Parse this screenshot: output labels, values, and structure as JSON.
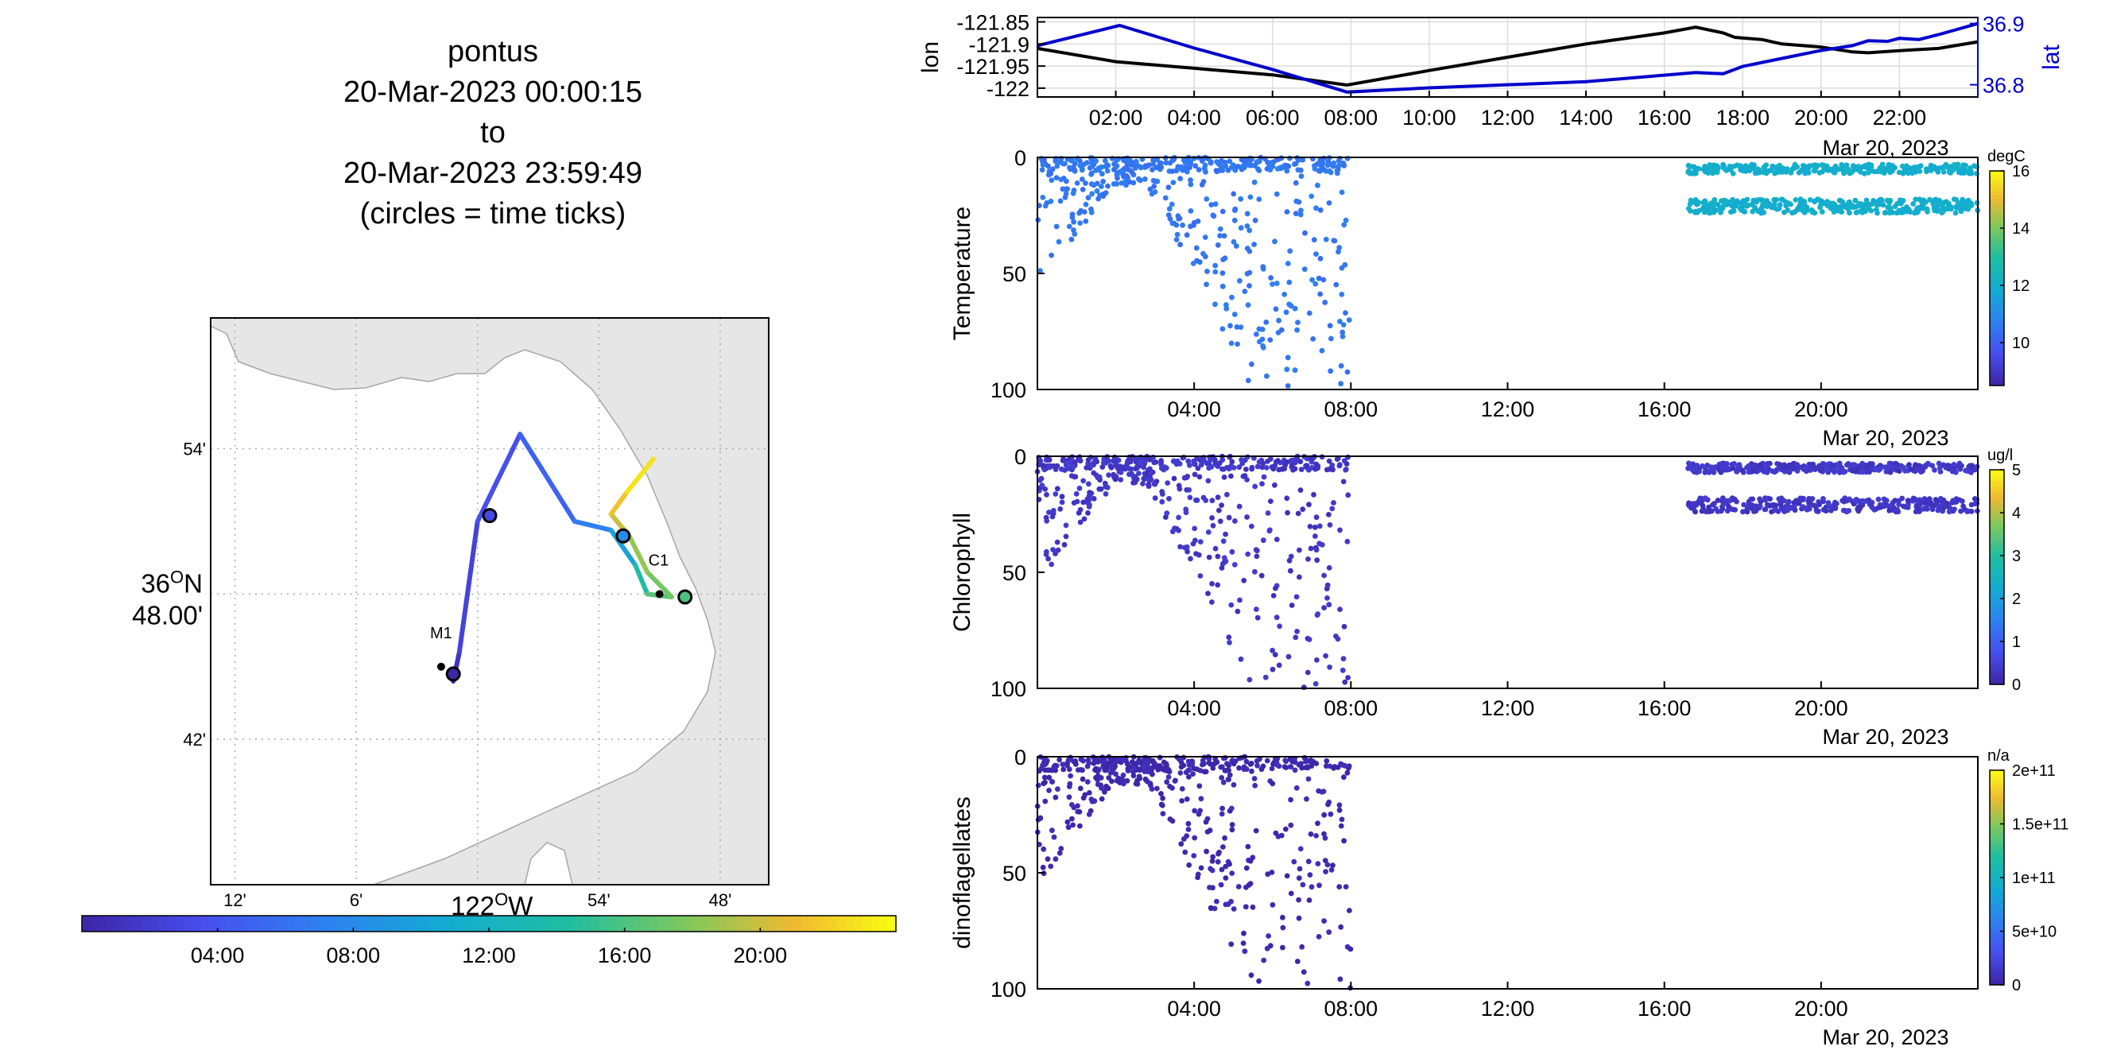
{
  "title": {
    "line1": "pontus",
    "line2": "20-Mar-2023 00:00:15",
    "line3": "to",
    "line4": "20-Mar-2023 23:59:49",
    "line5": "(circles = time ticks)"
  },
  "colors": {
    "lon_line": "#000000",
    "lat_line": "#0000cc",
    "land": "#e6e6e6",
    "coast": "#a6a6a6",
    "tick_circle": "#000000"
  },
  "chart_data": [
    {
      "type": "line",
      "panel": "lon-lat",
      "x_tick_labels": [
        "02:00",
        "04:00",
        "06:00",
        "08:00",
        "10:00",
        "12:00",
        "14:00",
        "16:00",
        "18:00",
        "20:00",
        "22:00"
      ],
      "x_tick_hours": [
        2,
        4,
        6,
        8,
        10,
        12,
        14,
        16,
        18,
        20,
        22
      ],
      "date_label": "Mar 20, 2023",
      "xlim_hours": [
        0,
        24
      ],
      "grid": true,
      "y_left": {
        "label": "lon",
        "ylim": [
          -122.02,
          -121.84
        ],
        "ticks": [
          -121.85,
          -121.9,
          -121.95,
          -122
        ],
        "tick_labels": [
          "-121.85",
          "-121.9",
          "-121.95",
          "-122"
        ]
      },
      "y_right": {
        "label": "lat",
        "ylim": [
          36.78,
          36.91
        ],
        "ticks": [
          36.9,
          36.8
        ],
        "tick_labels": [
          "36.9",
          "36.8"
        ]
      },
      "series": [
        {
          "axis": "left",
          "color": "#000000",
          "points": [
            [
              0,
              -121.91
            ],
            [
              2,
              -121.94
            ],
            [
              4,
              -121.955
            ],
            [
              6,
              -121.97
            ],
            [
              7.9,
              -121.993
            ],
            [
              10,
              -121.96
            ],
            [
              12,
              -121.93
            ],
            [
              14,
              -121.9
            ],
            [
              16,
              -121.875
            ],
            [
              16.8,
              -121.862
            ],
            [
              17.5,
              -121.875
            ],
            [
              17.8,
              -121.885
            ],
            [
              18.5,
              -121.89
            ],
            [
              19,
              -121.9
            ],
            [
              20,
              -121.907
            ],
            [
              20.8,
              -121.918
            ],
            [
              21.2,
              -121.92
            ],
            [
              22,
              -121.915
            ],
            [
              23,
              -121.91
            ],
            [
              24,
              -121.895
            ]
          ]
        },
        {
          "axis": "right",
          "color": "#0000cc",
          "points": [
            [
              0,
              36.864
            ],
            [
              2.1,
              36.897
            ],
            [
              4,
              36.86
            ],
            [
              6,
              36.825
            ],
            [
              7.9,
              36.788
            ],
            [
              10,
              36.795
            ],
            [
              14,
              36.805
            ],
            [
              16.8,
              36.82
            ],
            [
              17.5,
              36.818
            ],
            [
              18,
              36.83
            ],
            [
              19,
              36.843
            ],
            [
              20,
              36.856
            ],
            [
              20.8,
              36.864
            ],
            [
              21.2,
              36.872
            ],
            [
              21.7,
              36.871
            ],
            [
              22,
              36.876
            ],
            [
              22.5,
              36.874
            ],
            [
              23,
              36.882
            ],
            [
              24,
              36.9
            ]
          ]
        }
      ]
    },
    {
      "type": "scatter",
      "panel": "temperature",
      "ylabel": "Temperature",
      "ylim": [
        100,
        0
      ],
      "y_ticks": [
        0,
        50,
        100
      ],
      "x_tick_labels": [
        "04:00",
        "08:00",
        "12:00",
        "16:00",
        "20:00"
      ],
      "x_tick_hours": [
        4,
        8,
        12,
        16,
        20
      ],
      "date_label": "Mar 20, 2023",
      "xlim_hours": [
        0,
        24
      ],
      "colorbar": {
        "units": "degC",
        "clim": [
          8.5,
          16
        ],
        "ticks": [
          10,
          12,
          14,
          16
        ],
        "tick_labels": [
          "10",
          "12",
          "14",
          "16"
        ]
      },
      "bands": [
        {
          "x": [
            0.0,
            8.0
          ],
          "top": 0,
          "bottom": "profile",
          "value": 10.5
        },
        {
          "x": [
            16.6,
            24.0
          ],
          "top": 3,
          "bottom": 24,
          "value": 12.0
        }
      ]
    },
    {
      "type": "scatter",
      "panel": "chlorophyll",
      "ylabel": "Chlorophyll",
      "ylim": [
        100,
        0
      ],
      "y_ticks": [
        0,
        50,
        100
      ],
      "x_tick_labels": [
        "04:00",
        "08:00",
        "12:00",
        "16:00",
        "20:00"
      ],
      "x_tick_hours": [
        4,
        8,
        12,
        16,
        20
      ],
      "date_label": "Mar 20, 2023",
      "xlim_hours": [
        0,
        24
      ],
      "colorbar": {
        "units": "ug/l",
        "clim": [
          0,
          5
        ],
        "ticks": [
          0,
          1,
          2,
          3,
          4,
          5
        ],
        "tick_labels": [
          "0",
          "1",
          "2",
          "3",
          "4",
          "5"
        ]
      },
      "bands": [
        {
          "x": [
            0.0,
            8.0
          ],
          "top": 0,
          "bottom": "profile",
          "value": 0.3
        },
        {
          "x": [
            16.6,
            24.0
          ],
          "top": 3,
          "bottom": 24,
          "value": 0.3
        }
      ]
    },
    {
      "type": "scatter",
      "panel": "dinoflagellates",
      "ylabel": "dinoflagellates",
      "ylim": [
        100,
        0
      ],
      "y_ticks": [
        0,
        50,
        100
      ],
      "x_tick_labels": [
        "04:00",
        "08:00",
        "12:00",
        "16:00",
        "20:00"
      ],
      "x_tick_hours": [
        4,
        8,
        12,
        16,
        20
      ],
      "date_label": "Mar 20, 2023",
      "xlim_hours": [
        0,
        24
      ],
      "colorbar": {
        "units": "n/a",
        "clim": [
          0,
          200000000000.0
        ],
        "ticks": [
          0,
          50000000000.0,
          100000000000.0,
          150000000000.0,
          200000000000.0
        ],
        "tick_labels": [
          "0",
          "5e+10",
          "1e+11",
          "1.5e+11",
          "2e+11"
        ]
      },
      "bands": [
        {
          "x": [
            0.0,
            8.0
          ],
          "top": 0,
          "bottom": "profile",
          "value": 2000000000.0
        }
      ]
    },
    {
      "type": "map",
      "panel": "track-map",
      "lon_range": [
        -122.22,
        -121.76
      ],
      "lat_range": [
        36.6,
        36.99
      ],
      "lat_ticks": [
        36.9,
        36.8,
        36.7
      ],
      "lat_tick_labels": [
        "54'",
        "36°N 48.00'",
        "42'"
      ],
      "lat_label_main": "36",
      "lat_label_deg": "O",
      "lat_label_suffix": "N",
      "lat_label_min": "48.00'",
      "lon_ticks": [
        -122.2,
        -122.1,
        -122.0,
        -121.9,
        -121.8
      ],
      "lon_tick_labels": [
        "12'",
        "6'",
        "122°W",
        "54'",
        "48'"
      ],
      "lon_label_main": "122",
      "lon_label_deg": "O",
      "lon_label_suffix": "W",
      "stations": [
        {
          "name": "M1",
          "lon": -122.03,
          "lat": 36.75
        },
        {
          "name": "C1",
          "lon": -121.85,
          "lat": 36.8
        }
      ],
      "track": [
        {
          "lon": -122.02,
          "lat": 36.74,
          "hour": 0
        },
        {
          "lon": -122.015,
          "lat": 36.76,
          "hour": 2
        },
        {
          "lon": -122.0,
          "lat": 36.85,
          "hour": 3
        },
        {
          "lon": -121.965,
          "lat": 36.91,
          "hour": 4
        },
        {
          "lon": -121.92,
          "lat": 36.85,
          "hour": 6
        },
        {
          "lon": -121.89,
          "lat": 36.844,
          "hour": 8
        },
        {
          "lon": -121.87,
          "lat": 36.82,
          "hour": 12
        },
        {
          "lon": -121.86,
          "lat": 36.8,
          "hour": 16
        },
        {
          "lon": -121.84,
          "lat": 36.798,
          "hour": 17
        },
        {
          "lon": -121.86,
          "lat": 36.815,
          "hour": 18
        },
        {
          "lon": -121.875,
          "lat": 36.84,
          "hour": 19
        },
        {
          "lon": -121.89,
          "lat": 36.855,
          "hour": 21
        },
        {
          "lon": -121.877,
          "lat": 36.87,
          "hour": 22
        },
        {
          "lon": -121.855,
          "lat": 36.893,
          "hour": 24
        }
      ],
      "time_ticks": [
        {
          "lon": -122.02,
          "lat": 36.745,
          "hour": 0
        },
        {
          "lon": -121.99,
          "lat": 36.854,
          "hour": 3
        },
        {
          "lon": -121.88,
          "lat": 36.84,
          "hour": 8
        },
        {
          "lon": -121.829,
          "lat": 36.798,
          "hour": 16
        }
      ],
      "colorbar": {
        "clim_hours": [
          0,
          24
        ],
        "tick_labels": [
          "04:00",
          "08:00",
          "12:00",
          "16:00",
          "20:00"
        ],
        "tick_hours": [
          4,
          8,
          12,
          16,
          20
        ]
      }
    }
  ]
}
